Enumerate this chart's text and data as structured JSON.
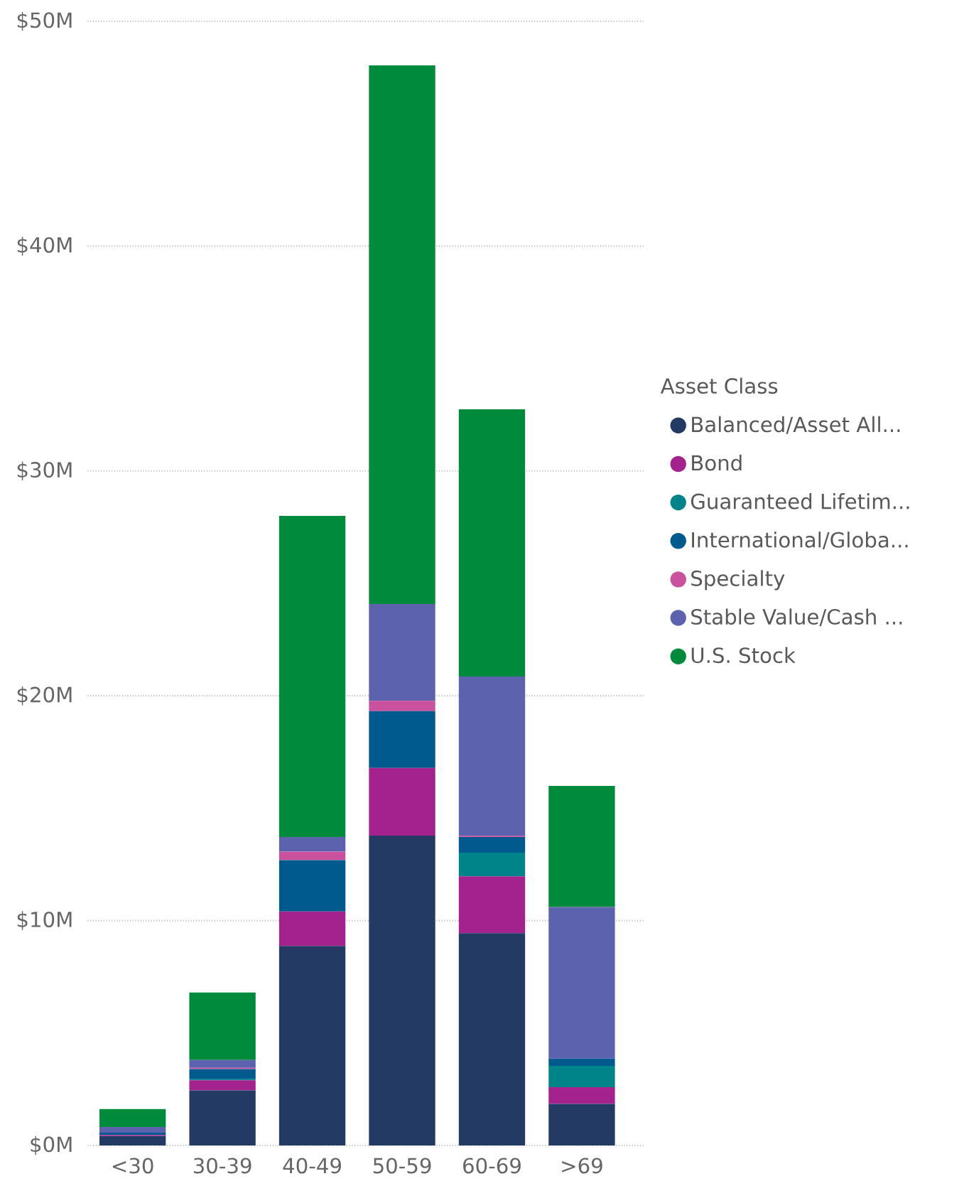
{
  "chart_data": {
    "type": "bar",
    "stacked": true,
    "legend_title": "Asset Class",
    "categories": [
      "<30",
      "30-39",
      "40-49",
      "50-59",
      "60-69",
      ">69"
    ],
    "series": [
      {
        "name": "Balanced/Asset All...",
        "color": "#223a64",
        "values": [
          0.42,
          2.45,
          8.87,
          13.78,
          9.44,
          1.85
        ]
      },
      {
        "name": "Bond",
        "color": "#a4228e",
        "values": [
          0.05,
          0.45,
          1.54,
          3.01,
          2.53,
          0.74
        ]
      },
      {
        "name": "Guaranteed Lifetim...",
        "color": "#00848a",
        "values": [
          0,
          0.05,
          0,
          0,
          1.05,
          0.95
        ]
      },
      {
        "name": "International/Globa...",
        "color": "#005a8e",
        "values": [
          0.1,
          0.45,
          2.28,
          2.53,
          0.7,
          0.32
        ]
      },
      {
        "name": "Specialty",
        "color": "#c9519d",
        "values": [
          0,
          0.05,
          0.38,
          0.46,
          0.05,
          0
        ]
      },
      {
        "name": "Stable Value/Cash ...",
        "color": "#5d62ae",
        "values": [
          0.25,
          0.35,
          0.65,
          4.3,
          7.09,
          6.74
        ]
      },
      {
        "name": "U.S. Stock",
        "color": "#008a3c",
        "values": [
          0.8,
          3.0,
          14.28,
          23.96,
          11.88,
          5.39
        ]
      }
    ],
    "ylim": [
      0,
      50
    ],
    "yticks": [
      {
        "value": 0,
        "label": "$0M"
      },
      {
        "value": 10,
        "label": "$10M"
      },
      {
        "value": 20,
        "label": "$20M"
      },
      {
        "value": 30,
        "label": "$30M"
      },
      {
        "value": 40,
        "label": "$40M"
      },
      {
        "value": 50,
        "label": "$50M"
      }
    ],
    "grid": "y",
    "legend": "right"
  }
}
